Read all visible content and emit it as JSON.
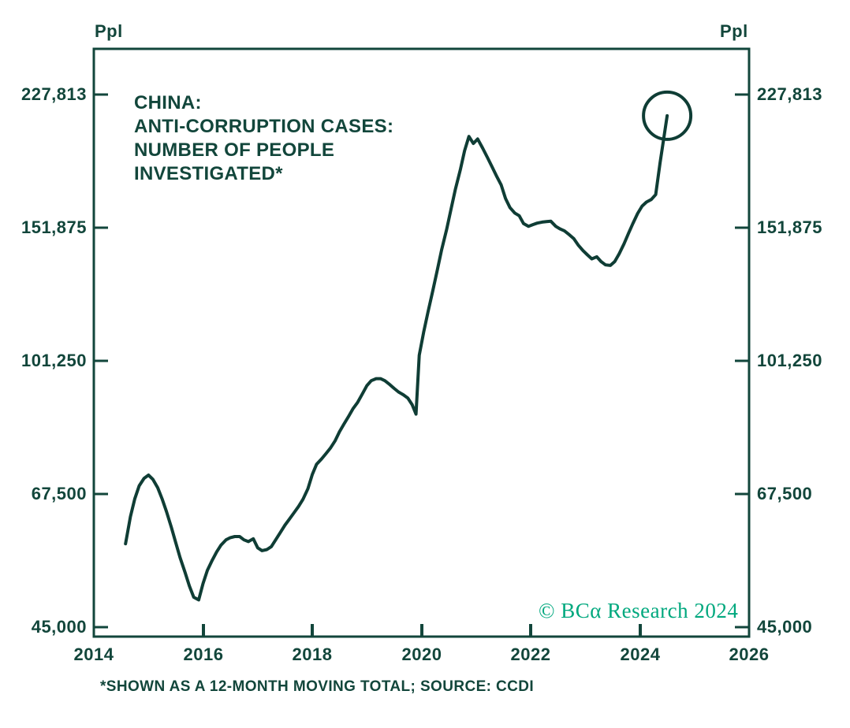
{
  "colors": {
    "ink": "#12463b",
    "line": "#0f3d35",
    "accent": "#00a87e",
    "background": "#ffffff"
  },
  "title": {
    "line1": "CHINA:",
    "line2": "ANTI-CORRUPTION CASES:",
    "line3": "NUMBER OF PEOPLE",
    "line4": "INVESTIGATED*"
  },
  "footnote": "*SHOWN AS A 12-MONTH MOVING TOTAL; SOURCE: CCDI",
  "copyright": "© BCα Research 2024",
  "chart_data": {
    "type": "line",
    "title": "CHINA: ANTI-CORRUPTION CASES: NUMBER OF PEOPLE INVESTIGATED*",
    "grid": false,
    "legend": false,
    "x_axis": {
      "min": 2014,
      "max": 2026,
      "tick_years": [
        2014,
        2016,
        2018,
        2020,
        2022,
        2024,
        2026
      ],
      "tick_labels": [
        "2014",
        "2016",
        "2018",
        "2020",
        "2022",
        "2024",
        "2026"
      ],
      "inner_ticks": [
        2016,
        2018,
        2020,
        2022,
        2024
      ]
    },
    "y_axis": {
      "scale": "log",
      "unit_left": "Ppl",
      "unit_right": "Ppl",
      "min": 45000,
      "max": 262000,
      "tick_values": [
        227813,
        151875,
        101250,
        67500,
        45000
      ],
      "tick_labels": [
        "227,813",
        "151,875",
        "101,250",
        "67,500",
        "45,000"
      ]
    },
    "annotation": {
      "type": "circle",
      "x": 2024.5,
      "y": 213600
    },
    "series": [
      {
        "name": "People investigated, 12-month moving total",
        "points": [
          [
            2014.58,
            58000
          ],
          [
            2014.67,
            63000
          ],
          [
            2014.75,
            66500
          ],
          [
            2014.83,
            69200
          ],
          [
            2014.92,
            70800
          ],
          [
            2015.0,
            71500
          ],
          [
            2015.08,
            70600
          ],
          [
            2015.17,
            68800
          ],
          [
            2015.25,
            66500
          ],
          [
            2015.33,
            64000
          ],
          [
            2015.42,
            61000
          ],
          [
            2015.5,
            58200
          ],
          [
            2015.58,
            55600
          ],
          [
            2015.67,
            53200
          ],
          [
            2015.75,
            51000
          ],
          [
            2015.83,
            49300
          ],
          [
            2015.92,
            48900
          ],
          [
            2016.0,
            51400
          ],
          [
            2016.08,
            53500
          ],
          [
            2016.17,
            55200
          ],
          [
            2016.25,
            56600
          ],
          [
            2016.33,
            57800
          ],
          [
            2016.42,
            58700
          ],
          [
            2016.5,
            59100
          ],
          [
            2016.58,
            59300
          ],
          [
            2016.67,
            59300
          ],
          [
            2016.75,
            58700
          ],
          [
            2016.83,
            58400
          ],
          [
            2016.92,
            58900
          ],
          [
            2017.0,
            57300
          ],
          [
            2017.08,
            56800
          ],
          [
            2017.17,
            57000
          ],
          [
            2017.25,
            57500
          ],
          [
            2017.33,
            58700
          ],
          [
            2017.42,
            60100
          ],
          [
            2017.5,
            61400
          ],
          [
            2017.58,
            62500
          ],
          [
            2017.67,
            63800
          ],
          [
            2017.75,
            65000
          ],
          [
            2017.83,
            66400
          ],
          [
            2017.92,
            68600
          ],
          [
            2018.0,
            71600
          ],
          [
            2018.08,
            73900
          ],
          [
            2018.17,
            75100
          ],
          [
            2018.25,
            76300
          ],
          [
            2018.33,
            77600
          ],
          [
            2018.42,
            79400
          ],
          [
            2018.5,
            81600
          ],
          [
            2018.58,
            83500
          ],
          [
            2018.67,
            85600
          ],
          [
            2018.75,
            87600
          ],
          [
            2018.83,
            89200
          ],
          [
            2018.92,
            91600
          ],
          [
            2019.0,
            93900
          ],
          [
            2019.08,
            95300
          ],
          [
            2019.17,
            95900
          ],
          [
            2019.25,
            95900
          ],
          [
            2019.33,
            95300
          ],
          [
            2019.42,
            94200
          ],
          [
            2019.5,
            93100
          ],
          [
            2019.58,
            92100
          ],
          [
            2019.67,
            91300
          ],
          [
            2019.75,
            90400
          ],
          [
            2019.83,
            88600
          ],
          [
            2019.9,
            86100
          ],
          [
            2019.96,
            103000
          ],
          [
            2020.04,
            110500
          ],
          [
            2020.12,
            117500
          ],
          [
            2020.21,
            125500
          ],
          [
            2020.29,
            133500
          ],
          [
            2020.37,
            142000
          ],
          [
            2020.46,
            151000
          ],
          [
            2020.54,
            160500
          ],
          [
            2020.62,
            170500
          ],
          [
            2020.71,
            181000
          ],
          [
            2020.79,
            192000
          ],
          [
            2020.87,
            200500
          ],
          [
            2020.95,
            196300
          ],
          [
            2021.03,
            199000
          ],
          [
            2021.12,
            193500
          ],
          [
            2021.21,
            188000
          ],
          [
            2021.29,
            183000
          ],
          [
            2021.37,
            178000
          ],
          [
            2021.46,
            173000
          ],
          [
            2021.54,
            166000
          ],
          [
            2021.62,
            161500
          ],
          [
            2021.71,
            158800
          ],
          [
            2021.79,
            157500
          ],
          [
            2021.87,
            153800
          ],
          [
            2021.96,
            152500
          ],
          [
            2022.04,
            153300
          ],
          [
            2022.12,
            154000
          ],
          [
            2022.21,
            154500
          ],
          [
            2022.29,
            154700
          ],
          [
            2022.37,
            154900
          ],
          [
            2022.46,
            152500
          ],
          [
            2022.54,
            151300
          ],
          [
            2022.62,
            150400
          ],
          [
            2022.71,
            148600
          ],
          [
            2022.79,
            146900
          ],
          [
            2022.87,
            144100
          ],
          [
            2022.96,
            141600
          ],
          [
            2023.04,
            139800
          ],
          [
            2023.12,
            138100
          ],
          [
            2023.21,
            139000
          ],
          [
            2023.29,
            137000
          ],
          [
            2023.37,
            135600
          ],
          [
            2023.46,
            135400
          ],
          [
            2023.54,
            137000
          ],
          [
            2023.62,
            140200
          ],
          [
            2023.71,
            144600
          ],
          [
            2023.79,
            149200
          ],
          [
            2023.87,
            153700
          ],
          [
            2023.96,
            158600
          ],
          [
            2024.04,
            162200
          ],
          [
            2024.12,
            164200
          ],
          [
            2024.21,
            165500
          ],
          [
            2024.29,
            168000
          ],
          [
            2024.37,
            185000
          ],
          [
            2024.44,
            200000
          ],
          [
            2024.5,
            213600
          ]
        ]
      }
    ]
  }
}
